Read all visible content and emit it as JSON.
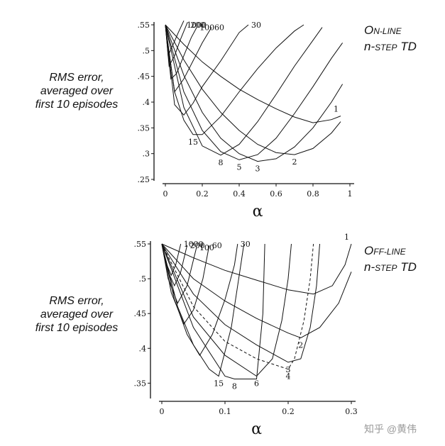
{
  "chart_data": [
    {
      "type": "line",
      "method_title": {
        "line1_cap": "O",
        "line1_rest": "N-LINE",
        "line2_lead": "n-",
        "line2_sc": "STEP",
        "line2_tail": " TD"
      },
      "ylabel": [
        "RMS error,",
        "averaged over",
        "first 10 episodes"
      ],
      "xlabel": "α",
      "xlim": [
        0,
        1
      ],
      "ylim": [
        0.25,
        0.55
      ],
      "xticks": [
        0,
        0.2,
        0.4,
        0.6,
        0.8,
        1
      ],
      "xtick_labels": [
        "0",
        "0.2",
        "0.4",
        "0.6",
        "0.8",
        "1"
      ],
      "yticks": [
        0.25,
        0.3,
        0.35,
        0.4,
        0.45,
        0.5,
        0.55
      ],
      "ytick_labels": [
        ".25",
        ".3",
        ".35",
        ".4",
        ".45",
        ".5",
        ".55"
      ],
      "grid": false,
      "series": [
        {
          "name": "1",
          "dashed": false,
          "x": [
            0,
            0.1,
            0.2,
            0.3,
            0.4,
            0.5,
            0.6,
            0.7,
            0.8,
            0.9,
            0.95
          ],
          "y": [
            0.55,
            0.512,
            0.478,
            0.45,
            0.425,
            0.405,
            0.387,
            0.371,
            0.36,
            0.366,
            0.373
          ]
        },
        {
          "name": "2",
          "dashed": false,
          "x": [
            0,
            0.1,
            0.2,
            0.3,
            0.4,
            0.5,
            0.6,
            0.7,
            0.8,
            0.9,
            0.95
          ],
          "y": [
            0.55,
            0.482,
            0.425,
            0.38,
            0.345,
            0.318,
            0.302,
            0.298,
            0.31,
            0.34,
            0.362
          ]
        },
        {
          "name": "3",
          "dashed": false,
          "x": [
            0,
            0.1,
            0.2,
            0.3,
            0.4,
            0.5,
            0.6,
            0.7,
            0.8,
            0.9,
            0.96
          ],
          "y": [
            0.55,
            0.452,
            0.38,
            0.33,
            0.3,
            0.285,
            0.29,
            0.313,
            0.35,
            0.4,
            0.435
          ]
        },
        {
          "name": "5",
          "dashed": false,
          "x": [
            0,
            0.1,
            0.2,
            0.3,
            0.4,
            0.5,
            0.6,
            0.7,
            0.8,
            0.9,
            0.96
          ],
          "y": [
            0.55,
            0.42,
            0.345,
            0.304,
            0.288,
            0.298,
            0.33,
            0.378,
            0.43,
            0.485,
            0.515
          ]
        },
        {
          "name": "8",
          "dashed": false,
          "x": [
            0,
            0.1,
            0.2,
            0.3,
            0.4,
            0.5,
            0.6,
            0.7,
            0.8,
            0.85
          ],
          "y": [
            0.55,
            0.39,
            0.315,
            0.297,
            0.318,
            0.362,
            0.415,
            0.47,
            0.52,
            0.545
          ]
        },
        {
          "name": "15",
          "dashed": false,
          "x": [
            0,
            0.05,
            0.1,
            0.15,
            0.2,
            0.3,
            0.4,
            0.5,
            0.6,
            0.7,
            0.75
          ],
          "y": [
            0.55,
            0.42,
            0.365,
            0.337,
            0.337,
            0.372,
            0.42,
            0.465,
            0.505,
            0.538,
            0.55
          ]
        },
        {
          "name": "30",
          "dashed": false,
          "x": [
            0,
            0.05,
            0.1,
            0.15,
            0.2,
            0.3,
            0.4,
            0.45
          ],
          "y": [
            0.55,
            0.395,
            0.375,
            0.398,
            0.43,
            0.48,
            0.535,
            0.55
          ]
        },
        {
          "name": "60",
          "dashed": false,
          "x": [
            0,
            0.05,
            0.1,
            0.15,
            0.2,
            0.25
          ],
          "y": [
            0.55,
            0.42,
            0.445,
            0.48,
            0.515,
            0.545
          ]
        },
        {
          "name": "100",
          "dashed": false,
          "x": [
            0,
            0.03,
            0.06,
            0.1,
            0.14,
            0.17
          ],
          "y": [
            0.55,
            0.445,
            0.455,
            0.49,
            0.525,
            0.545
          ]
        },
        {
          "name": "200",
          "dashed": false,
          "x": [
            0,
            0.02,
            0.05,
            0.08,
            0.12
          ],
          "y": [
            0.55,
            0.47,
            0.49,
            0.52,
            0.555
          ]
        },
        {
          "name": "1000",
          "dashed": false,
          "x": [
            0,
            0.015,
            0.04,
            0.07,
            0.1
          ],
          "y": [
            0.55,
            0.49,
            0.51,
            0.535,
            0.558
          ]
        }
      ]
    },
    {
      "type": "line",
      "method_title": {
        "line1_cap": "O",
        "line1_rest": "FF-LINE",
        "line2_lead": "n-",
        "line2_sc": "STEP",
        "line2_tail": " TD"
      },
      "ylabel": [
        "RMS error,",
        "averaged over",
        "first 10 episodes"
      ],
      "xlabel": "α",
      "xlim": [
        0,
        0.3
      ],
      "ylim": [
        0.33,
        0.55
      ],
      "xticks": [
        0,
        0.1,
        0.2,
        0.3
      ],
      "xtick_labels": [
        "0",
        "0.1",
        "0.2",
        "0.3"
      ],
      "yticks": [
        0.35,
        0.4,
        0.45,
        0.5,
        0.55
      ],
      "ytick_labels": [
        ".35",
        ".4",
        ".45",
        ".5",
        ".55"
      ],
      "grid": false,
      "series": [
        {
          "name": "1",
          "dashed": false,
          "x": [
            0,
            0.05,
            0.1,
            0.15,
            0.2,
            0.24,
            0.27,
            0.29,
            0.3
          ],
          "y": [
            0.55,
            0.53,
            0.512,
            0.498,
            0.484,
            0.478,
            0.49,
            0.52,
            0.55
          ]
        },
        {
          "name": "2",
          "dashed": false,
          "x": [
            0,
            0.05,
            0.1,
            0.15,
            0.2,
            0.22,
            0.25,
            0.28,
            0.3
          ],
          "y": [
            0.55,
            0.5,
            0.468,
            0.443,
            0.422,
            0.415,
            0.43,
            0.465,
            0.51
          ]
        },
        {
          "name": "3",
          "dashed": false,
          "x": [
            0,
            0.05,
            0.1,
            0.15,
            0.2,
            0.22,
            0.235,
            0.245,
            0.25
          ],
          "y": [
            0.55,
            0.478,
            0.434,
            0.405,
            0.38,
            0.385,
            0.43,
            0.49,
            0.55
          ]
        },
        {
          "name": "4",
          "dashed": true,
          "x": [
            0,
            0.05,
            0.1,
            0.15,
            0.2,
            0.21,
            0.225,
            0.235,
            0.24
          ],
          "y": [
            0.55,
            0.46,
            0.41,
            0.385,
            0.37,
            0.385,
            0.44,
            0.5,
            0.55
          ]
        },
        {
          "name": "6",
          "dashed": false,
          "x": [
            0,
            0.05,
            0.1,
            0.15,
            0.175,
            0.19,
            0.2,
            0.205
          ],
          "y": [
            0.55,
            0.445,
            0.39,
            0.36,
            0.385,
            0.44,
            0.5,
            0.55
          ]
        },
        {
          "name": "8",
          "dashed": false,
          "x": [
            0,
            0.05,
            0.1,
            0.115,
            0.15,
            0.16,
            0.163
          ],
          "y": [
            0.55,
            0.43,
            0.36,
            0.356,
            0.356,
            0.45,
            0.55
          ]
        },
        {
          "name": "15",
          "dashed": false,
          "x": [
            0,
            0.025,
            0.05,
            0.075,
            0.09,
            0.11,
            0.125,
            0.13
          ],
          "y": [
            0.55,
            0.46,
            0.405,
            0.37,
            0.36,
            0.43,
            0.52,
            0.55
          ]
        },
        {
          "name": "30",
          "dashed": false,
          "x": [
            0,
            0.02,
            0.04,
            0.06,
            0.08,
            0.1,
            0.115,
            0.12
          ],
          "y": [
            0.55,
            0.47,
            0.42,
            0.39,
            0.42,
            0.47,
            0.52,
            0.55
          ]
        },
        {
          "name": "60",
          "dashed": false,
          "x": [
            0,
            0.015,
            0.035,
            0.05,
            0.065,
            0.075
          ],
          "y": [
            0.55,
            0.48,
            0.435,
            0.455,
            0.5,
            0.548
          ]
        },
        {
          "name": "100",
          "dashed": false,
          "x": [
            0,
            0.01,
            0.025,
            0.04,
            0.055
          ],
          "y": [
            0.55,
            0.5,
            0.465,
            0.49,
            0.545
          ]
        },
        {
          "name": "200",
          "dashed": false,
          "x": [
            0,
            0.01,
            0.02,
            0.03,
            0.04
          ],
          "y": [
            0.55,
            0.51,
            0.49,
            0.51,
            0.548
          ]
        },
        {
          "name": "1000",
          "dashed": false,
          "x": [
            0,
            0.008,
            0.015,
            0.022,
            0.03
          ],
          "y": [
            0.55,
            0.52,
            0.505,
            0.52,
            0.55
          ]
        }
      ]
    }
  ],
  "watermark": "知乎 @黄伟"
}
